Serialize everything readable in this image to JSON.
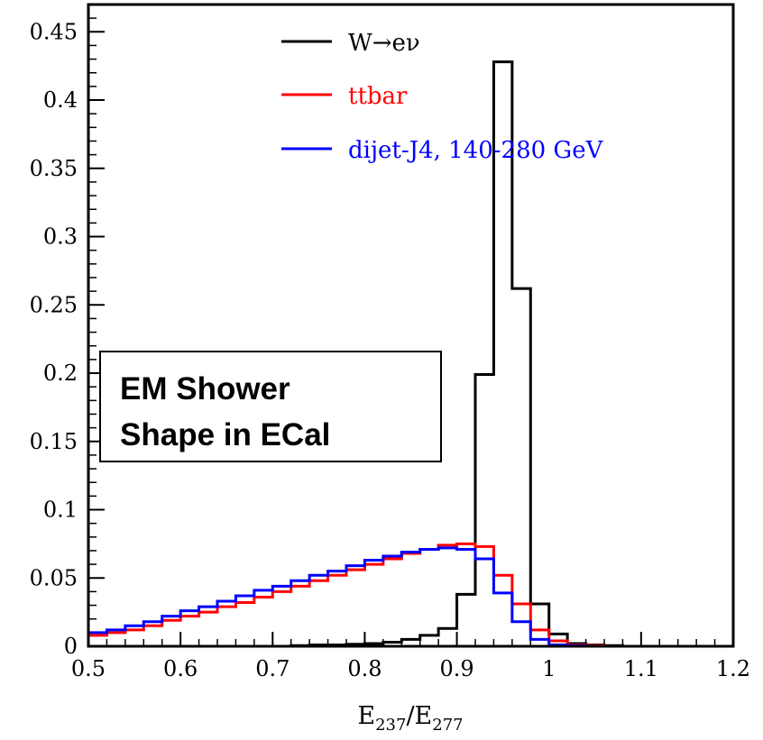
{
  "chart_data": {
    "type": "line",
    "step": true,
    "xlim": [
      0.5,
      1.2
    ],
    "ylim": [
      0,
      0.47
    ],
    "grid": false,
    "legend_position": "top-right",
    "x_ticks": [
      "0.5",
      "0.6",
      "0.7",
      "0.8",
      "0.9",
      "1",
      "1.1",
      "1.2"
    ],
    "y_ticks": [
      "0",
      "0.05",
      "0.1",
      "0.15",
      "0.2",
      "0.25",
      "0.3",
      "0.35",
      "0.4",
      "0.45"
    ],
    "xlabel": {
      "main": "E",
      "sub1": "237",
      "slash": "/E",
      "sub2": "277"
    },
    "annotation": {
      "line1": "EM Shower",
      "line2": "Shape in ECal"
    },
    "bin_edges": [
      0.5,
      0.52,
      0.54,
      0.56,
      0.58,
      0.6,
      0.62,
      0.64,
      0.66,
      0.68,
      0.7,
      0.72,
      0.74,
      0.76,
      0.78,
      0.8,
      0.82,
      0.84,
      0.86,
      0.88,
      0.9,
      0.92,
      0.94,
      0.96,
      0.98,
      1.0,
      1.02,
      1.04,
      1.06,
      1.08,
      1.1,
      1.12,
      1.14,
      1.16,
      1.18,
      1.2
    ],
    "series": [
      {
        "name": "W→eν",
        "color": "#000000",
        "values": [
          0,
          0,
          0,
          0,
          0,
          0,
          0,
          0,
          0,
          0,
          0,
          0.0005,
          0.001,
          0.001,
          0.0015,
          0.002,
          0.003,
          0.005,
          0.008,
          0.013,
          0.038,
          0.199,
          0.428,
          0.262,
          0.031,
          0.009,
          0.002,
          0.001,
          0.0005,
          0,
          0,
          0,
          0,
          0,
          0
        ]
      },
      {
        "name": "ttbar",
        "color": "#ff0000",
        "values": [
          0.008,
          0.01,
          0.012,
          0.015,
          0.019,
          0.022,
          0.025,
          0.029,
          0.032,
          0.036,
          0.04,
          0.044,
          0.048,
          0.052,
          0.056,
          0.06,
          0.064,
          0.068,
          0.071,
          0.074,
          0.075,
          0.073,
          0.052,
          0.031,
          0.012,
          0.004,
          0.001,
          0.0005,
          0,
          0,
          0,
          0,
          0,
          0,
          0
        ]
      },
      {
        "name": "dijet-J4, 140-280 GeV",
        "color": "#0000ff",
        "values": [
          0.01,
          0.012,
          0.015,
          0.018,
          0.022,
          0.026,
          0.029,
          0.033,
          0.037,
          0.041,
          0.044,
          0.048,
          0.052,
          0.055,
          0.059,
          0.063,
          0.066,
          0.069,
          0.071,
          0.072,
          0.071,
          0.064,
          0.039,
          0.018,
          0.005,
          0.001,
          0.0005,
          0,
          0,
          0,
          0,
          0,
          0,
          0,
          0
        ]
      }
    ]
  }
}
